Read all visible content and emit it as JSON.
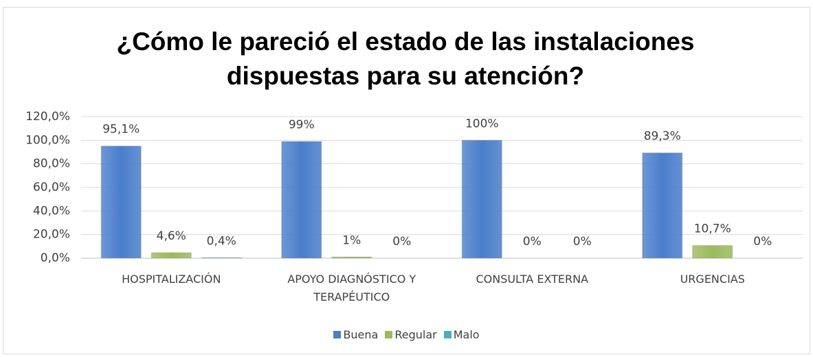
{
  "chart_data": {
    "type": "bar",
    "title": "¿Cómo le pareció el estado de las instalaciones dispuestas para su atención?",
    "categories": [
      "HOSPITALIZACIÓN",
      "APOYO DIAGNÓSTICO Y TERAPÉUTICO",
      "CONSULTA EXTERNA",
      "URGENCIAS"
    ],
    "series": [
      {
        "name": "Buena",
        "color": "#4a7ecb",
        "values": [
          95.1,
          99,
          100,
          89.3
        ],
        "value_labels": [
          "95,1%",
          "99%",
          "100%",
          "89,3%"
        ]
      },
      {
        "name": "Regular",
        "color": "#9bbb59",
        "values": [
          4.6,
          1,
          0,
          10.7
        ],
        "value_labels": [
          "4,6%",
          "1%",
          "0%",
          "10,7%"
        ]
      },
      {
        "name": "Malo",
        "color": "#4bacc6",
        "values": [
          0.4,
          0,
          0,
          0
        ],
        "value_labels": [
          "0,4%",
          "0%",
          "0%",
          "0%"
        ]
      }
    ],
    "ylim": [
      0,
      120
    ],
    "yticks": [
      {
        "value": 0,
        "label": "0,0%"
      },
      {
        "value": 20,
        "label": "20,0%"
      },
      {
        "value": 40,
        "label": "40,0%"
      },
      {
        "value": 60,
        "label": "60,0%"
      },
      {
        "value": 80,
        "label": "80,0%"
      },
      {
        "value": 100,
        "label": "100,0%"
      },
      {
        "value": 120,
        "label": "120,0%"
      }
    ],
    "grid": true,
    "legend": "bottom"
  }
}
